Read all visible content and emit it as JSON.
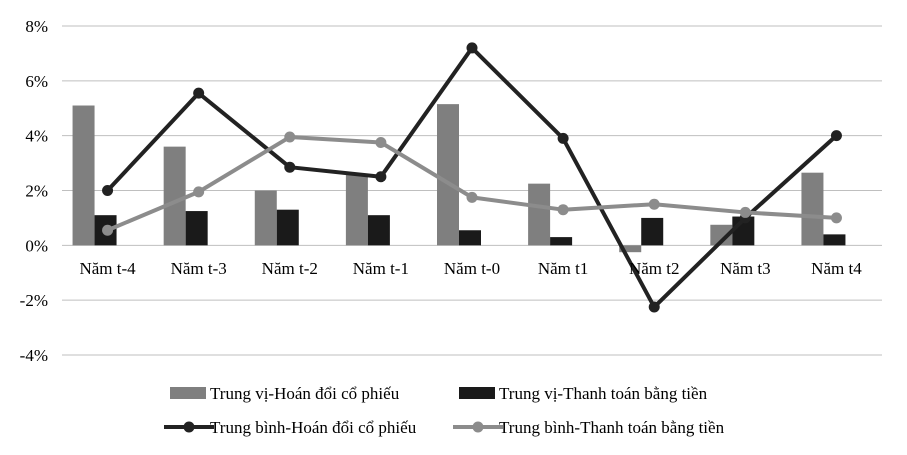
{
  "chart_data": {
    "type": "bar",
    "categories": [
      "Năm t-4",
      "Năm t-3",
      "Năm t-2",
      "Năm t-1",
      "Năm t-0",
      "Năm t1",
      "Năm t2",
      "Năm t3",
      "Năm t4"
    ],
    "ylim": [
      -4,
      8
    ],
    "yticks": [
      -4,
      -2,
      0,
      2,
      4,
      6,
      8
    ],
    "ytick_labels": [
      "-4%",
      "-2%",
      "0%",
      "2%",
      "4%",
      "6%",
      "8%"
    ],
    "grid": true,
    "legend_position": "bottom",
    "bar_series": [
      {
        "name": "Trung vị-Hoán đổi cổ phiếu",
        "color": "#7f7f7f",
        "values": [
          5.1,
          3.6,
          2.0,
          2.6,
          5.15,
          2.25,
          -0.25,
          0.75,
          2.65
        ]
      },
      {
        "name": "Trung vị-Thanh toán bằng tiền",
        "color": "#1a1a1a",
        "values": [
          1.1,
          1.25,
          1.3,
          1.1,
          0.55,
          0.3,
          1.0,
          1.05,
          0.4
        ]
      }
    ],
    "line_series": [
      {
        "name": "Trung bình-Hoán đổi cổ phiếu",
        "color": "#222222",
        "values": [
          2.0,
          5.55,
          2.85,
          2.5,
          7.2,
          3.9,
          -2.25,
          1.0,
          4.0
        ]
      },
      {
        "name": "Trung bình-Thanh toán bằng tiền",
        "color": "#8c8c8c",
        "values": [
          0.55,
          1.95,
          3.95,
          3.75,
          1.75,
          1.3,
          1.5,
          1.2,
          1.0
        ]
      }
    ]
  }
}
